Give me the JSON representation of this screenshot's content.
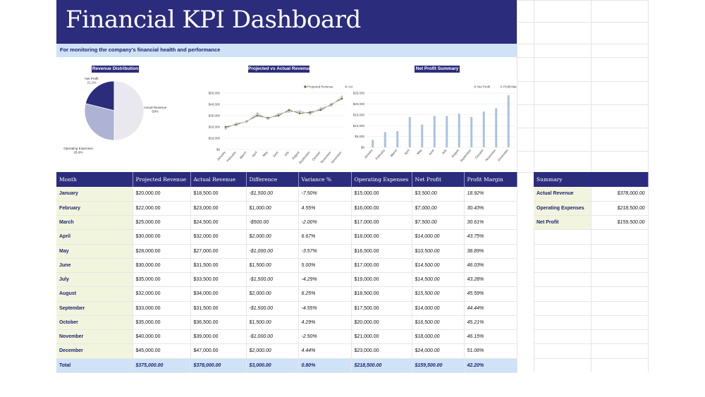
{
  "dashboard": {
    "title": "Financial KPI Dashboard",
    "subtitle": "For monitoring the company's financial health and performance"
  },
  "charts": {
    "pie_title": "Revenue Distribution",
    "line_title": "Projected vs Actual Revenue",
    "bar_title": "Net Profit Summary"
  },
  "chart_data": [
    {
      "type": "pie",
      "title": "Revenue Distribution",
      "slices": [
        {
          "label": "Net Profit",
          "pct_label": "21.1%",
          "value": 21.1,
          "color": "#2b2c7c"
        },
        {
          "label": "Actual Revenue",
          "pct_label": "50%",
          "value": 50.0,
          "color": "#e8e8ee"
        },
        {
          "label": "Operating Expenses",
          "pct_label": "28.9%",
          "value": 28.9,
          "color": "#aeb2d4"
        }
      ]
    },
    {
      "type": "line",
      "title": "Projected vs Actual Revenue",
      "categories": [
        "January",
        "February",
        "March",
        "April",
        "May",
        "June",
        "July",
        "August",
        "September",
        "October",
        "November",
        "December"
      ],
      "series": [
        {
          "name": "Projected Revenue",
          "color": "#6b7045",
          "values": [
            20000,
            22000,
            25000,
            30000,
            28000,
            30000,
            35000,
            32000,
            33000,
            35000,
            40000,
            45000
          ]
        },
        {
          "name": "Actual Revenue",
          "color": "#bdbdbd",
          "values": [
            18500,
            23000,
            24500,
            32000,
            27000,
            31500,
            33500,
            34000,
            31500,
            36500,
            39000,
            47000
          ]
        }
      ],
      "ylim": [
        0,
        50000
      ],
      "yticks": [
        "$0",
        "$10,000",
        "$20,000",
        "$30,000",
        "$40,000",
        "$50,000"
      ]
    },
    {
      "type": "bar",
      "title": "Net Profit Summary",
      "categories": [
        "January",
        "February",
        "March",
        "April",
        "May",
        "June",
        "July",
        "August",
        "September",
        "October",
        "November",
        "December"
      ],
      "series": [
        {
          "name": "Net Profit",
          "color": "#a9c1e4",
          "values": [
            3500,
            7000,
            7500,
            14000,
            10500,
            14500,
            14500,
            15500,
            14000,
            16500,
            18000,
            24000
          ]
        },
        {
          "name": "Profit Margin",
          "color": "#c3c6e6",
          "values": [
            18.92,
            30.43,
            30.61,
            43.75,
            38.89,
            46.03,
            43.28,
            45.59,
            44.44,
            45.21,
            46.15,
            51.06
          ]
        }
      ],
      "ylim": [
        0,
        25000
      ],
      "yticks": [
        "$0",
        "$5,000",
        "$10,000",
        "$15,000",
        "$20,000",
        "$25,000"
      ]
    }
  ],
  "table": {
    "headers": [
      "Month",
      "Projected Revenue",
      "Actual Revenue",
      "Difference",
      "Variance %",
      "Operating Expenses",
      "Net Profit",
      "Profit Margin"
    ],
    "rows": [
      [
        "January",
        "$20,000.00",
        "$18,500.00",
        "-$1,500.00",
        "-7.50%",
        "$15,000.00",
        "$3,500.00",
        "18.92%"
      ],
      [
        "February",
        "$22,000.00",
        "$23,000.00",
        "$1,000.00",
        "4.55%",
        "$16,000.00",
        "$7,000.00",
        "30.43%"
      ],
      [
        "March",
        "$25,000.00",
        "$24,500.00",
        "-$500.00",
        "-2.00%",
        "$17,000.00",
        "$7,500.00",
        "30.61%"
      ],
      [
        "April",
        "$30,000.00",
        "$32,000.00",
        "$2,000.00",
        "6.67%",
        "$18,000.00",
        "$14,000.00",
        "43.75%"
      ],
      [
        "May",
        "$28,000.00",
        "$27,000.00",
        "-$1,000.00",
        "-3.57%",
        "$16,500.00",
        "$10,500.00",
        "38.89%"
      ],
      [
        "June",
        "$30,000.00",
        "$31,500.00",
        "$1,500.00",
        "5.00%",
        "$17,000.00",
        "$14,500.00",
        "46.03%"
      ],
      [
        "July",
        "$35,000.00",
        "$33,500.00",
        "-$1,500.00",
        "-4.29%",
        "$19,000.00",
        "$14,500.00",
        "43.28%"
      ],
      [
        "August",
        "$32,000.00",
        "$34,000.00",
        "$2,000.00",
        "6.25%",
        "$18,500.00",
        "$15,500.00",
        "45.59%"
      ],
      [
        "September",
        "$33,000.00",
        "$31,500.00",
        "-$1,500.00",
        "-4.55%",
        "$17,500.00",
        "$14,000.00",
        "44.44%"
      ],
      [
        "October",
        "$35,000.00",
        "$36,500.00",
        "$1,500.00",
        "4.29%",
        "$20,000.00",
        "$16,500.00",
        "45.21%"
      ],
      [
        "November",
        "$40,000.00",
        "$39,000.00",
        "-$1,000.00",
        "-2.50%",
        "$21,000.00",
        "$18,000.00",
        "46.15%"
      ],
      [
        "December",
        "$45,000.00",
        "$47,000.00",
        "$2,000.00",
        "4.44%",
        "$23,000.00",
        "$24,000.00",
        "51.06%"
      ]
    ],
    "total": [
      "Total",
      "$375,000.00",
      "$378,000.00",
      "$3,000.00",
      "0.80%",
      "$218,500.00",
      "$159,500.00",
      "42.20%"
    ]
  },
  "summary": {
    "header": "Summary",
    "rows": [
      [
        "Actual Revenue",
        "$378,000.00"
      ],
      [
        "Operating Expenses",
        "$218,500.00"
      ],
      [
        "Net Profit",
        "$159,500.00"
      ]
    ]
  }
}
